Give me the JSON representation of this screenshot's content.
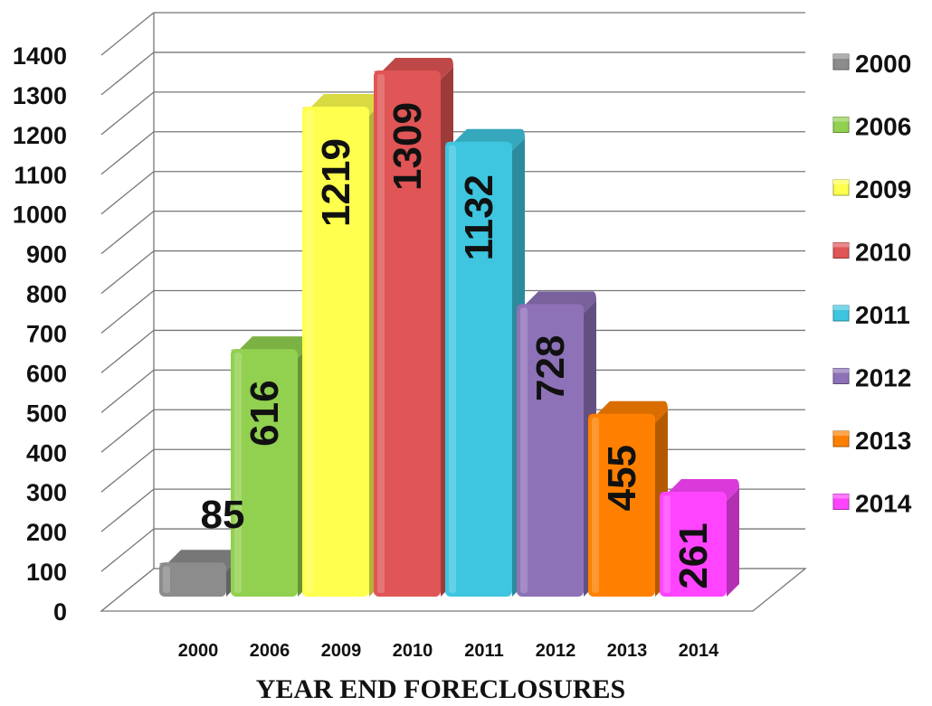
{
  "chart_data": {
    "type": "bar",
    "title": "",
    "xlabel": "YEAR END FORECLOSURES",
    "ylabel": "",
    "ylim": [
      0,
      1400
    ],
    "yticks": [
      0,
      100,
      200,
      300,
      400,
      500,
      600,
      700,
      800,
      900,
      1000,
      1100,
      1200,
      1300,
      1400
    ],
    "grid": true,
    "legend_position": "right",
    "categories": [
      "2000",
      "2006",
      "2009",
      "2010",
      "2011",
      "2012",
      "2013",
      "2014"
    ],
    "values": [
      85,
      616,
      1219,
      1309,
      1132,
      728,
      455,
      261
    ],
    "data_labels": [
      "85",
      "616",
      "1219",
      "1309",
      "1132",
      "728",
      "455",
      "261"
    ],
    "colors": [
      "#8c8c8c",
      "#92d050",
      "#ffff4d",
      "#e05555",
      "#3ec6e0",
      "#8e72b8",
      "#ff8000",
      "#ff44ff"
    ],
    "legend": [
      "2000",
      "2006",
      "2009",
      "2010",
      "2011",
      "2012",
      "2013",
      "2014"
    ]
  }
}
